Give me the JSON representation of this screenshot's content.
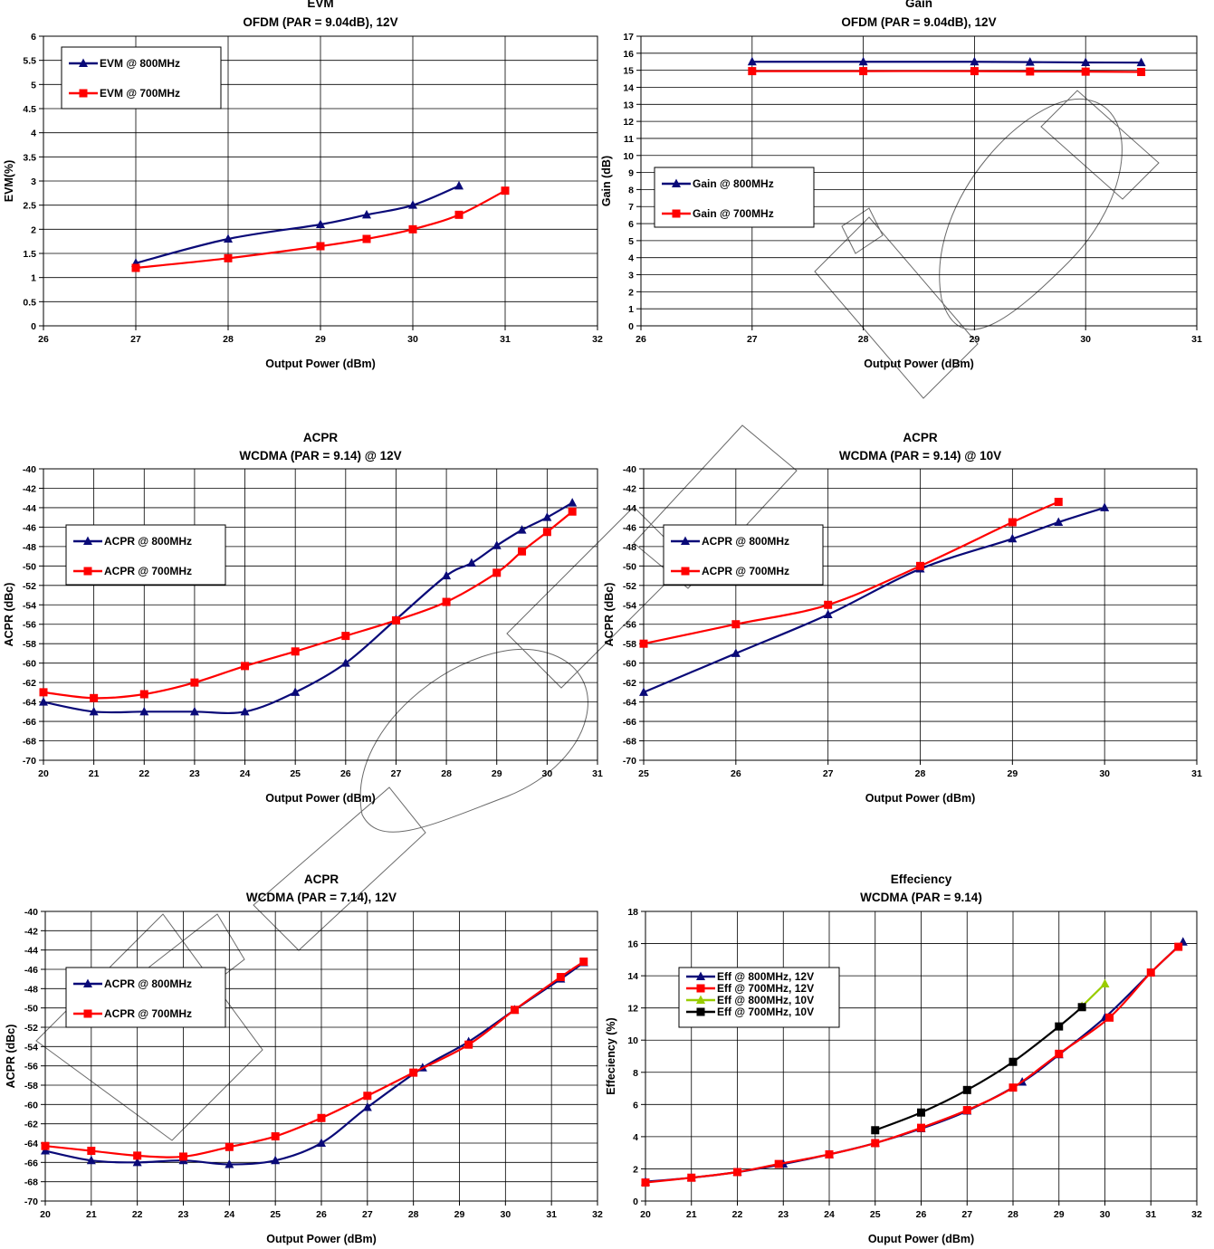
{
  "chart_data": [
    {
      "type": "line",
      "title": "EVM",
      "subtitle": "OFDM (PAR = 9.04dB), 12V",
      "xlabel": "Output Power (dBm)",
      "ylabel": "EVM(%)",
      "xlim": [
        26,
        32
      ],
      "ylim": [
        0,
        6
      ],
      "xticks": [
        26,
        27,
        28,
        29,
        30,
        31,
        32
      ],
      "yticks": [
        0,
        0.5,
        1,
        1.5,
        2,
        2.5,
        3,
        3.5,
        4,
        4.5,
        5,
        5.5,
        6
      ],
      "grid": true,
      "legend_position": "top-left",
      "series": [
        {
          "name": "EVM @ 800MHz",
          "color": "#0a0a78",
          "marker": "triangle",
          "x": [
            27,
            28,
            29,
            29.5,
            30,
            30.5
          ],
          "y": [
            1.3,
            1.8,
            2.1,
            2.3,
            2.5,
            2.9
          ]
        },
        {
          "name": "EVM @ 700MHz",
          "color": "#ff0000",
          "marker": "square",
          "x": [
            27,
            28,
            29,
            29.5,
            30,
            30.5,
            31
          ],
          "y": [
            1.2,
            1.4,
            1.65,
            1.8,
            2.0,
            2.3,
            2.8
          ]
        }
      ]
    },
    {
      "type": "line",
      "title": "Gain",
      "subtitle": "OFDM (PAR = 9.04dB), 12V",
      "xlabel": "Output Power (dBm)",
      "ylabel": "Gain (dB)",
      "xlim": [
        26,
        31
      ],
      "ylim": [
        0,
        17
      ],
      "xticks": [
        26,
        27,
        28,
        29,
        30,
        31
      ],
      "yticks": [
        0,
        1,
        2,
        3,
        4,
        5,
        6,
        7,
        8,
        9,
        10,
        11,
        12,
        13,
        14,
        15,
        16,
        17
      ],
      "grid": true,
      "legend_position": "middle-left",
      "series": [
        {
          "name": "Gain @ 800MHz",
          "color": "#0a0a78",
          "marker": "triangle",
          "x": [
            27,
            28,
            29,
            29.5,
            30,
            30.5
          ],
          "y": [
            15.5,
            15.5,
            15.5,
            15.48,
            15.46,
            15.45
          ]
        },
        {
          "name": "Gain @ 700MHz",
          "color": "#ff0000",
          "marker": "square",
          "x": [
            27,
            28,
            29,
            29.5,
            30,
            30.5
          ],
          "y": [
            14.95,
            14.95,
            14.95,
            14.93,
            14.92,
            14.9
          ]
        }
      ]
    },
    {
      "type": "line",
      "title": "ACPR",
      "subtitle": "WCDMA (PAR = 9.14) @ 12V",
      "xlabel": "Output Power (dBm)",
      "ylabel": "ACPR (dBc)",
      "xlim": [
        20,
        31
      ],
      "ylim": [
        -70,
        -40
      ],
      "xticks": [
        20,
        21,
        22,
        23,
        24,
        25,
        26,
        27,
        28,
        29,
        30,
        31
      ],
      "yticks": [
        -70,
        -68,
        -66,
        -64,
        -62,
        -60,
        -58,
        -56,
        -54,
        -52,
        -50,
        -48,
        -46,
        -44,
        -42,
        -40
      ],
      "grid": true,
      "legend_position": "upper-left",
      "series": [
        {
          "name": "ACPR @ 800MHz",
          "color": "#0a0a78",
          "marker": "triangle",
          "x": [
            20,
            21,
            22,
            23,
            24,
            25,
            26,
            27,
            28,
            28.5,
            29,
            29.5,
            30,
            30.5
          ],
          "y": [
            -64,
            -65,
            -65,
            -65,
            -65,
            -63,
            -60,
            -55.5,
            -51,
            -49.7,
            -47.9,
            -46.3,
            -45,
            -43.5
          ]
        },
        {
          "name": "ACPR @ 700MHz",
          "color": "#ff0000",
          "marker": "square",
          "x": [
            20,
            21,
            22,
            23,
            24,
            25,
            26,
            27,
            28,
            29,
            29.5,
            30,
            30.5
          ],
          "y": [
            -63,
            -63.6,
            -63.2,
            -62,
            -60.3,
            -58.8,
            -57.2,
            -55.6,
            -53.7,
            -50.7,
            -48.5,
            -46.5,
            -44.4
          ]
        }
      ]
    },
    {
      "type": "line",
      "title": "ACPR",
      "subtitle": "WCDMA (PAR = 9.14) @ 10V",
      "xlabel": "Output Power (dBm)",
      "ylabel": "ACPR (dBc)",
      "xlim": [
        25,
        31
      ],
      "ylim": [
        -70,
        -40
      ],
      "xticks": [
        25,
        26,
        27,
        28,
        29,
        30,
        31
      ],
      "yticks": [
        -70,
        -68,
        -66,
        -64,
        -62,
        -60,
        -58,
        -56,
        -54,
        -52,
        -50,
        -48,
        -46,
        -44,
        -42,
        -40
      ],
      "grid": true,
      "legend_position": "upper-left",
      "series": [
        {
          "name": "ACPR @ 800MHz",
          "color": "#0a0a78",
          "marker": "triangle",
          "x": [
            25,
            26,
            27,
            28,
            29,
            29.5,
            30
          ],
          "y": [
            -63,
            -59,
            -55,
            -50.3,
            -47.2,
            -45.5,
            -44
          ]
        },
        {
          "name": "ACPR @ 700MHz",
          "color": "#ff0000",
          "marker": "square",
          "x": [
            25,
            26,
            27,
            28,
            29,
            29.5
          ],
          "y": [
            -58,
            -56,
            -54,
            -50,
            -45.5,
            -43.4
          ]
        }
      ]
    },
    {
      "type": "line",
      "title": "ACPR",
      "subtitle": "WCDMA (PAR = 7.14), 12V",
      "xlabel": "Output Power (dBm)",
      "ylabel": "ACPR (dBc)",
      "xlim": [
        20,
        32
      ],
      "ylim": [
        -70,
        -40
      ],
      "xticks": [
        20,
        21,
        22,
        23,
        24,
        25,
        26,
        27,
        28,
        29,
        30,
        31,
        32
      ],
      "yticks": [
        -70,
        -68,
        -66,
        -64,
        -62,
        -60,
        -58,
        -56,
        -54,
        -52,
        -50,
        -48,
        -46,
        -44,
        -42,
        -40
      ],
      "grid": true,
      "legend_position": "upper-left",
      "series": [
        {
          "name": "ACPR @ 800MHz",
          "color": "#0a0a78",
          "marker": "triangle",
          "x": [
            20,
            21,
            22,
            23,
            24,
            25,
            26,
            27,
            28.2,
            29.2,
            30.2,
            31.2,
            31.7
          ],
          "y": [
            -64.8,
            -65.8,
            -66,
            -65.8,
            -66.2,
            -65.8,
            -64,
            -60.3,
            -56.2,
            -53.5,
            -50.2,
            -47,
            -45.3
          ]
        },
        {
          "name": "ACPR @ 700MHz",
          "color": "#ff0000",
          "marker": "square",
          "x": [
            20,
            21,
            22,
            23,
            24,
            25,
            26,
            27,
            28,
            29.2,
            30.2,
            31.2,
            31.7
          ],
          "y": [
            -64.3,
            -64.8,
            -65.3,
            -65.4,
            -64.4,
            -63.3,
            -61.4,
            -59.1,
            -56.7,
            -53.8,
            -50.2,
            -46.8,
            -45.2
          ]
        }
      ]
    },
    {
      "type": "line",
      "title": "Effeciency",
      "subtitle": "WCDMA (PAR = 9.14)",
      "xlabel": "Ouput Power (dBm)",
      "ylabel": "Effeciency (%)",
      "xlim": [
        20,
        32
      ],
      "ylim": [
        0,
        18
      ],
      "xticks": [
        20,
        21,
        22,
        23,
        24,
        25,
        26,
        27,
        28,
        29,
        30,
        31,
        32
      ],
      "yticks": [
        0,
        2,
        4,
        6,
        8,
        10,
        12,
        14,
        16,
        18
      ],
      "grid": true,
      "legend_position": "upper-left",
      "series": [
        {
          "name": "Eff @ 800MHz, 12V",
          "color": "#0a0a78",
          "marker": "triangle",
          "x": [
            20,
            21,
            22,
            23,
            24,
            25,
            26,
            27,
            28.2,
            29,
            30,
            31,
            31.7
          ],
          "y": [
            1.2,
            1.45,
            1.8,
            2.3,
            2.9,
            3.6,
            4.5,
            5.6,
            7.4,
            9.1,
            11.4,
            14.2,
            16.1
          ]
        },
        {
          "name": "Eff @ 700MHz, 12V",
          "color": "#ff0000",
          "marker": "square",
          "x": [
            20,
            21,
            22,
            22.9,
            24,
            25,
            26,
            27,
            28,
            29,
            30.1,
            31,
            31.6
          ],
          "y": [
            1.15,
            1.45,
            1.8,
            2.3,
            2.9,
            3.6,
            4.55,
            5.65,
            7.05,
            9.15,
            11.4,
            14.2,
            15.8
          ]
        },
        {
          "name": "Eff @ 800MHz, 10V",
          "color": "#99cc00",
          "marker": "triangle",
          "x": [
            29.5,
            30
          ],
          "y": [
            12.1,
            13.5
          ]
        },
        {
          "name": "Eff @ 700MHz, 10V",
          "color": "#000000",
          "marker": "square",
          "x": [
            25,
            26,
            27,
            28,
            29,
            29.5
          ],
          "y": [
            4.4,
            5.5,
            6.9,
            8.65,
            10.85,
            12.05
          ]
        }
      ]
    }
  ]
}
